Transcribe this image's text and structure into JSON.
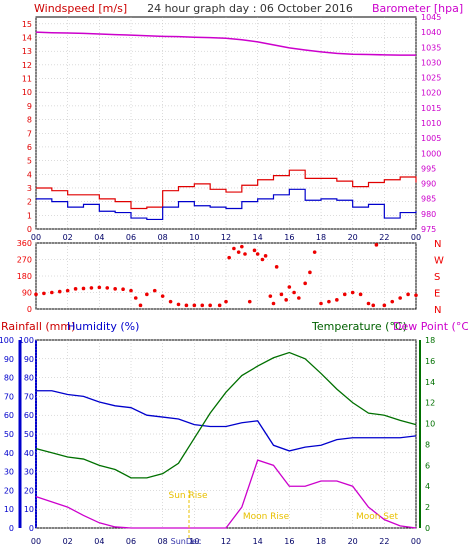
{
  "page": {
    "title": "24 hour graph day : 06 October 2016",
    "bottom_label": "SunDec"
  },
  "colors": {
    "wind": "#e00000",
    "gust": "#e00000",
    "avg_wind": "#0000cc",
    "barometer": "#cc00cc",
    "direction": "#ee0000",
    "rain": "#cc0000",
    "humidity": "#0000cc",
    "temperature": "#007000",
    "dewpoint": "#cc00cc",
    "annotation": "#e8c000",
    "grid": "#b8b8b8",
    "frame": "#000000"
  },
  "x_ticks": [
    "00",
    "02",
    "04",
    "06",
    "08",
    "10",
    "12",
    "14",
    "16",
    "18",
    "20",
    "22",
    "00"
  ],
  "chart_data": [
    {
      "type": "line",
      "name": "wind-barometer",
      "ylabel_left": "Windspeed [m/s]",
      "ylabel_right": "Barometer [hpa]",
      "left_ticks": [
        "0",
        "1",
        "2",
        "3",
        "4",
        "5",
        "6",
        "7",
        "8",
        "9",
        "10",
        "11",
        "12",
        "13",
        "14",
        "15"
      ],
      "right_ticks": [
        "975",
        "980",
        "985",
        "990",
        "995",
        "1000",
        "1005",
        "1010",
        "1015",
        "1020",
        "1025",
        "1030",
        "1035",
        "1040",
        "1045"
      ],
      "ylim_left": [
        0,
        15.5
      ],
      "ylim_right": [
        975,
        1045
      ],
      "x_hours": [
        0,
        1,
        2,
        3,
        4,
        5,
        6,
        7,
        8,
        9,
        10,
        11,
        12,
        13,
        14,
        15,
        16,
        17,
        18,
        19,
        20,
        21,
        22,
        23,
        24
      ],
      "series": [
        {
          "name": "gust",
          "values": [
            3.0,
            2.8,
            2.5,
            2.5,
            2.2,
            2.0,
            1.5,
            1.6,
            2.8,
            3.1,
            3.3,
            2.9,
            2.7,
            3.2,
            3.6,
            3.9,
            4.3,
            3.7,
            3.7,
            3.5,
            3.1,
            3.4,
            3.6,
            3.8,
            3.4
          ]
        },
        {
          "name": "avg-wind",
          "values": [
            2.2,
            2.0,
            1.6,
            1.8,
            1.3,
            1.2,
            0.8,
            0.7,
            1.6,
            2.0,
            1.7,
            1.6,
            1.5,
            2.0,
            2.2,
            2.5,
            2.9,
            2.1,
            2.2,
            2.1,
            1.6,
            1.8,
            0.8,
            1.2,
            1.3
          ]
        },
        {
          "name": "barometer",
          "values": [
            1040.0,
            1039.8,
            1039.7,
            1039.6,
            1039.4,
            1039.2,
            1039.0,
            1038.8,
            1038.6,
            1038.5,
            1038.3,
            1038.2,
            1038.0,
            1037.5,
            1036.8,
            1035.8,
            1034.8,
            1034.1,
            1033.5,
            1033.0,
            1032.7,
            1032.6,
            1032.5,
            1032.4,
            1032.4
          ]
        }
      ]
    },
    {
      "type": "scatter",
      "name": "wind-direction",
      "left_ticks": [
        "360",
        "270",
        "180",
        "90",
        "0"
      ],
      "right_ticks": [
        "N",
        "W",
        "S",
        "E",
        "N"
      ],
      "ylim": [
        0,
        360
      ],
      "points": [
        [
          0,
          80
        ],
        [
          0.5,
          85
        ],
        [
          1,
          90
        ],
        [
          1.5,
          95
        ],
        [
          2,
          100
        ],
        [
          2.5,
          110
        ],
        [
          3,
          112
        ],
        [
          3.5,
          115
        ],
        [
          4,
          118
        ],
        [
          4.5,
          115
        ],
        [
          5,
          110
        ],
        [
          5.5,
          108
        ],
        [
          6,
          100
        ],
        [
          6.3,
          60
        ],
        [
          6.6,
          20
        ],
        [
          7,
          80
        ],
        [
          7.5,
          100
        ],
        [
          8,
          70
        ],
        [
          8.5,
          40
        ],
        [
          9,
          25
        ],
        [
          9.5,
          20
        ],
        [
          10,
          20
        ],
        [
          10.5,
          20
        ],
        [
          11,
          20
        ],
        [
          11.6,
          20
        ],
        [
          12,
          40
        ],
        [
          12.2,
          280
        ],
        [
          12.5,
          330
        ],
        [
          12.8,
          310
        ],
        [
          13,
          340
        ],
        [
          13.2,
          300
        ],
        [
          13.5,
          40
        ],
        [
          13.8,
          320
        ],
        [
          14,
          300
        ],
        [
          14.3,
          270
        ],
        [
          14.5,
          290
        ],
        [
          14.8,
          70
        ],
        [
          15,
          30
        ],
        [
          15.2,
          230
        ],
        [
          15.5,
          80
        ],
        [
          15.8,
          50
        ],
        [
          16,
          120
        ],
        [
          16.3,
          90
        ],
        [
          16.6,
          60
        ],
        [
          17,
          140
        ],
        [
          17.3,
          200
        ],
        [
          17.6,
          310
        ],
        [
          18,
          30
        ],
        [
          18.5,
          40
        ],
        [
          19,
          50
        ],
        [
          19.5,
          80
        ],
        [
          20,
          90
        ],
        [
          20.5,
          80
        ],
        [
          21,
          30
        ],
        [
          21.3,
          20
        ],
        [
          21.5,
          350
        ],
        [
          22,
          20
        ],
        [
          22.5,
          40
        ],
        [
          23,
          60
        ],
        [
          23.5,
          80
        ],
        [
          24,
          75
        ]
      ]
    },
    {
      "type": "line",
      "name": "rain-humidity-temperature",
      "ylabel_left_1": "Rainfall (mm)",
      "ylabel_left_2": "Humidity (%)",
      "ylabel_right_1": "Temperature (°C)",
      "ylabel_right_2": "Dew Point (°C)",
      "rain_ticks": [
        "0",
        "10",
        "20",
        "30",
        "40",
        "50",
        "60",
        "70",
        "80",
        "90",
        "100"
      ],
      "humidity_ticks": [
        "0",
        "10",
        "20",
        "30",
        "40",
        "50",
        "60",
        "70",
        "80",
        "90",
        "100"
      ],
      "temp_ticks": [
        "0",
        "2",
        "4",
        "6",
        "8",
        "10",
        "12",
        "14",
        "16",
        "18"
      ],
      "ylim_humidity": [
        0,
        100
      ],
      "ylim_temp": [
        0,
        18
      ],
      "x_hours": [
        0,
        1,
        2,
        3,
        4,
        5,
        6,
        7,
        8,
        9,
        10,
        11,
        12,
        13,
        14,
        15,
        16,
        17,
        18,
        19,
        20,
        21,
        22,
        23,
        24
      ],
      "series": [
        {
          "name": "humidity",
          "values": [
            73,
            73,
            71,
            70,
            67,
            65,
            64,
            60,
            59,
            58,
            55,
            54,
            54,
            56,
            57,
            44,
            41,
            43,
            44,
            47,
            48,
            48,
            48,
            48,
            49
          ]
        },
        {
          "name": "temperature",
          "values": [
            7.6,
            7.2,
            6.8,
            6.6,
            6.0,
            5.6,
            4.8,
            4.8,
            5.2,
            6.2,
            8.6,
            11.0,
            13.0,
            14.6,
            15.5,
            16.3,
            16.8,
            16.2,
            14.8,
            13.3,
            12.0,
            11.0,
            10.8,
            10.3,
            9.9
          ]
        },
        {
          "name": "dewpoint",
          "values": [
            3.0,
            2.5,
            2.0,
            1.2,
            0.5,
            0.1,
            0.0,
            0.0,
            0.0,
            0.0,
            0.0,
            0.0,
            0.0,
            2.0,
            6.5,
            6.0,
            4.0,
            4.0,
            4.5,
            4.5,
            4.0,
            2.0,
            0.8,
            0.2,
            0.0
          ]
        }
      ]
    }
  ],
  "annotations": {
    "sun_rise": "Sun Rise",
    "moon_rise": "Moon Rise",
    "moon_set": "Moon Set"
  }
}
